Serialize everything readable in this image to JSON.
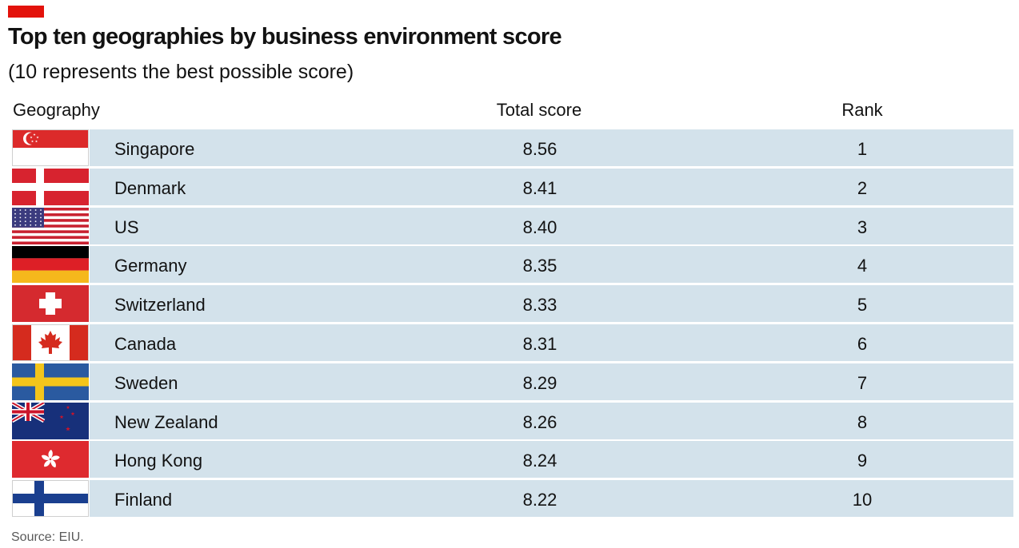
{
  "header": {
    "title": "Top ten geographies by business environment score",
    "subtitle": "(10 represents the best possible score)",
    "accent_color": "#e3120b"
  },
  "columns": {
    "geography": "Geography",
    "score": "Total score",
    "rank": "Rank"
  },
  "chart_data": {
    "type": "table",
    "title": "Top ten geographies by business environment score",
    "subtitle": "(10 represents the best possible score)",
    "columns": [
      "Geography",
      "Total score",
      "Rank"
    ],
    "rows": [
      {
        "geography": "Singapore",
        "score": "8.56",
        "rank": "1",
        "flag": "singapore-flag-icon"
      },
      {
        "geography": "Denmark",
        "score": "8.41",
        "rank": "2",
        "flag": "denmark-flag-icon"
      },
      {
        "geography": "US",
        "score": "8.40",
        "rank": "3",
        "flag": "us-flag-icon"
      },
      {
        "geography": "Germany",
        "score": "8.35",
        "rank": "4",
        "flag": "germany-flag-icon"
      },
      {
        "geography": "Switzerland",
        "score": "8.33",
        "rank": "5",
        "flag": "switzerland-flag-icon"
      },
      {
        "geography": "Canada",
        "score": "8.31",
        "rank": "6",
        "flag": "canada-flag-icon"
      },
      {
        "geography": "Sweden",
        "score": "8.29",
        "rank": "7",
        "flag": "sweden-flag-icon"
      },
      {
        "geography": "New Zealand",
        "score": "8.26",
        "rank": "8",
        "flag": "new-zealand-flag-icon"
      },
      {
        "geography": "Hong Kong",
        "score": "8.24",
        "rank": "9",
        "flag": "hong-kong-flag-icon"
      },
      {
        "geography": "Finland",
        "score": "8.22",
        "rank": "10",
        "flag": "finland-flag-icon"
      }
    ],
    "row_background": "#d3e2eb"
  },
  "footer": {
    "source": "Source: EIU."
  }
}
